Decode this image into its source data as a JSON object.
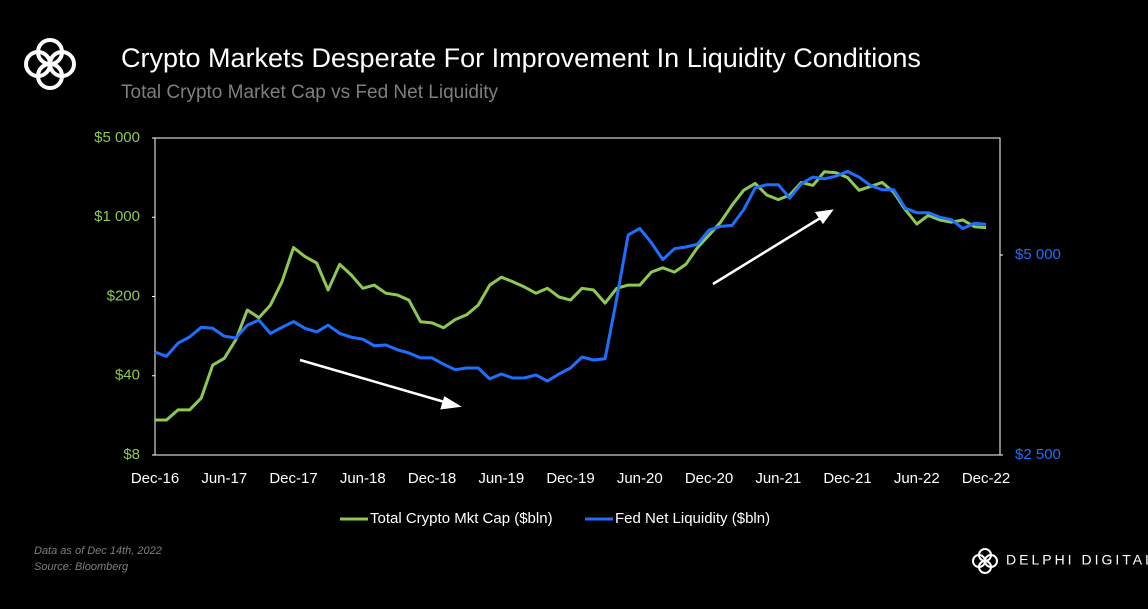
{
  "chart_data": {
    "type": "line",
    "title": "Crypto Markets Desperate For Improvement  In Liquidity Conditions",
    "subtitle": "Total Crypto Market Cap vs Fed Net Liquidity",
    "note": "Data as of Dec 14th, 2022",
    "source": "Source: Bloomberg",
    "brand": "DELPHI DIGITAL",
    "categories": [
      "Dec-16",
      null,
      null,
      null,
      null,
      null,
      "Jun-17",
      null,
      null,
      null,
      null,
      null,
      "Dec-17",
      null,
      null,
      null,
      null,
      null,
      "Jun-18",
      null,
      null,
      null,
      null,
      null,
      "Dec-18",
      null,
      null,
      null,
      null,
      null,
      "Jun-19",
      null,
      null,
      null,
      null,
      null,
      "Dec-19",
      null,
      null,
      null,
      null,
      null,
      "Jun-20",
      null,
      null,
      null,
      null,
      null,
      "Dec-20",
      null,
      null,
      null,
      null,
      null,
      "Jun-21",
      null,
      null,
      null,
      null,
      null,
      "Dec-21",
      null,
      null,
      null,
      null,
      null,
      "Jun-22",
      null,
      null,
      null,
      null,
      null,
      "Dec-22"
    ],
    "series": [
      {
        "name": "Total Crypto Mkt Cap ($bln)",
        "color": "#8dc853",
        "axis": "y",
        "values": [
          16.3,
          16.3,
          20,
          20,
          25.4,
          49.7,
          57,
          83,
          152,
          130,
          168,
          270,
          540,
          450,
          395,
          228,
          385,
          310,
          236,
          252,
          214,
          206,
          186,
          120,
          117,
          106,
          125,
          138,
          168,
          252,
          296,
          270,
          243,
          214,
          236,
          198,
          186,
          236,
          228,
          175,
          236,
          252,
          252,
          328,
          358,
          328,
          385,
          540,
          695,
          905,
          1280,
          1730,
          1990,
          1570,
          1430,
          1570,
          2030,
          1910,
          2520,
          2470,
          2240,
          1730,
          1870,
          2030,
          1660,
          1170,
          872,
          1040,
          945,
          905,
          945,
          825,
          810
        ]
      },
      {
        "name": "Fed Net Liquidity ($bln)",
        "color": "#1f6fff",
        "axis": "y2",
        "values": [
          3573,
          3520,
          3685,
          3763,
          3892,
          3878,
          3774,
          3750,
          3920,
          3990,
          3810,
          3892,
          3970,
          3878,
          3830,
          3920,
          3810,
          3760,
          3735,
          3650,
          3660,
          3600,
          3560,
          3500,
          3500,
          3425,
          3360,
          3380,
          3380,
          3255,
          3310,
          3265,
          3265,
          3300,
          3230,
          3310,
          3380,
          3510,
          3475,
          3490,
          4300,
          5360,
          5480,
          5220,
          4920,
          5110,
          5140,
          5190,
          5450,
          5520,
          5540,
          5845,
          6310,
          6380,
          6380,
          6090,
          6400,
          6550,
          6510,
          6570,
          6680,
          6550,
          6360,
          6270,
          6270,
          5880,
          5790,
          5790,
          5700,
          5650,
          5480,
          5580,
          5560
        ]
      }
    ],
    "ylim": [
      8,
      5000
    ],
    "yticks": [
      {
        "value": 8,
        "label": "$8"
      },
      {
        "value": 40,
        "label": "$40"
      },
      {
        "value": 200,
        "label": "$200"
      },
      {
        "value": 1000,
        "label": "$1 000"
      },
      {
        "value": 5000,
        "label": "$5 000"
      }
    ],
    "y_log": true,
    "y2lim": [
      2500,
      7500
    ],
    "y2ticks": [
      {
        "value": 2500,
        "label": "$2 500"
      },
      {
        "value": 5000,
        "label": "$5 000"
      }
    ],
    "y2_log": true,
    "y_color": "#8dc853",
    "y2_color": "#1f6fff",
    "grid": false,
    "legend": "bottom"
  }
}
